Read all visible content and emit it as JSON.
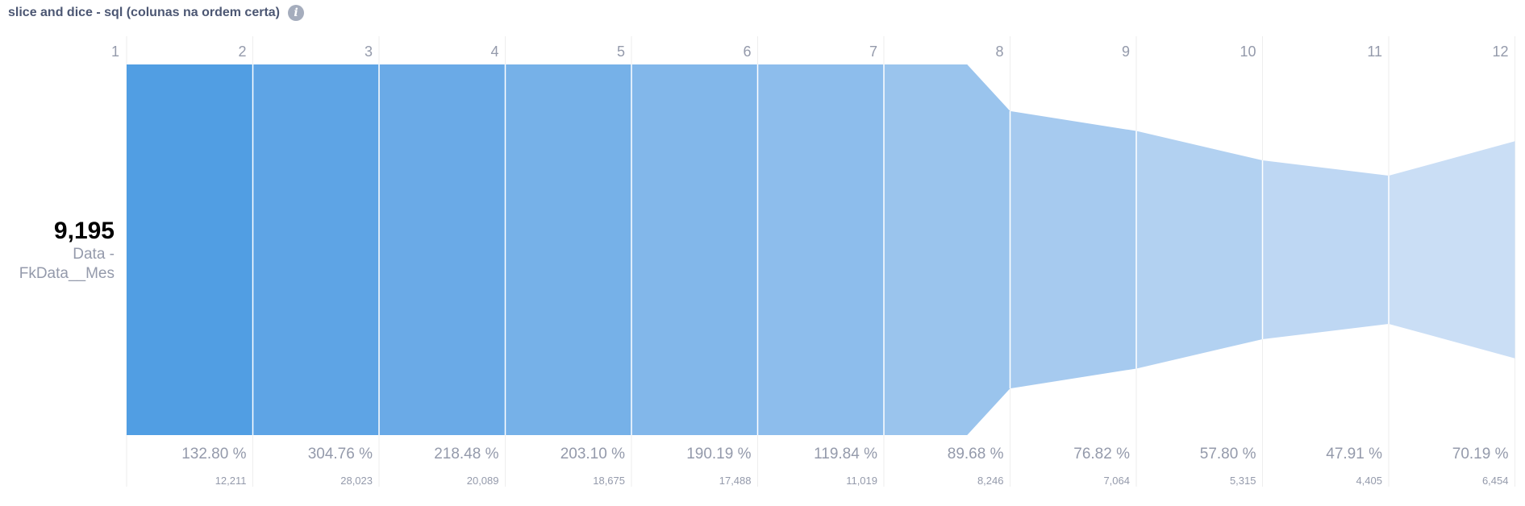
{
  "header": {
    "title": "slice and dice - sql (colunas na ordem certa)",
    "info_icon": "info-icon"
  },
  "first_step": {
    "value": "9,195",
    "name_line1": "Data -",
    "name_line2": "FkData__Mes"
  },
  "colors": {
    "bars": [
      "#519ee3",
      "#5ea4e5",
      "#6aaae7",
      "#76b1e8",
      "#82b7ea",
      "#8dbdec",
      "#9ac4ed",
      "#a6caef",
      "#b2d1f1",
      "#bed7f3",
      "#cadef5"
    ],
    "gridline": "#eeeeee",
    "label": "#949aab"
  },
  "chart_data": {
    "type": "funnel",
    "steps": [
      "1",
      "2",
      "3",
      "4",
      "5",
      "6",
      "7",
      "8",
      "9",
      "10",
      "11",
      "12"
    ],
    "values": [
      9195,
      12211,
      28023,
      20089,
      18675,
      17488,
      11019,
      8246,
      7064,
      5315,
      4405,
      6454
    ],
    "value_labels": [
      "9,195",
      "12,211",
      "28,023",
      "20,089",
      "18,675",
      "17,488",
      "11,019",
      "8,246",
      "7,064",
      "5,315",
      "4,405",
      "6,454"
    ],
    "percent_labels": [
      "",
      "132.80 %",
      "304.76 %",
      "218.48 %",
      "203.10 %",
      "190.19 %",
      "119.84 %",
      "89.68 %",
      "76.82 %",
      "57.80 %",
      "47.91 %",
      "70.19 %"
    ]
  }
}
